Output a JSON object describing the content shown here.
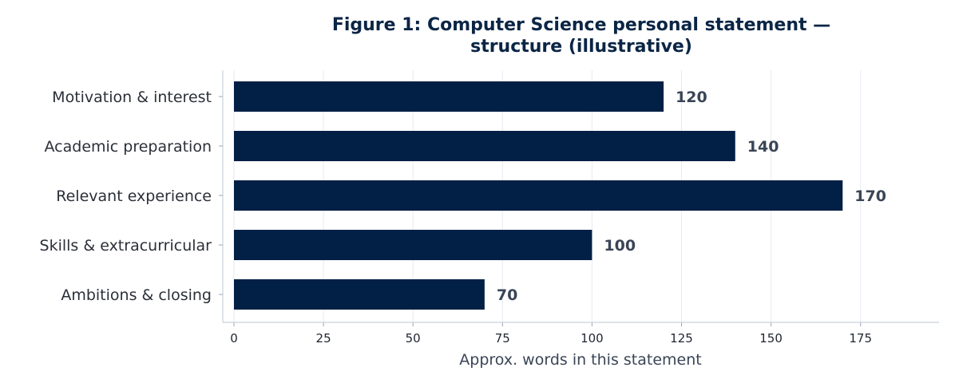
{
  "chart_data": {
    "type": "bar",
    "orientation": "horizontal",
    "title": "Figure 1: Computer Science personal statement — structure (illustrative)",
    "title_lines": [
      "Figure 1: Computer Science personal statement —",
      "structure (illustrative)"
    ],
    "categories": [
      "Motivation & interest",
      "Academic preparation",
      "Relevant experience",
      "Skills & extracurricular",
      "Ambitions & closing"
    ],
    "values": [
      120,
      140,
      170,
      100,
      70
    ],
    "xlabel": "Approx. words in this statement",
    "ylabel": "",
    "xlim": [
      0,
      197
    ],
    "xticks": [
      0,
      25,
      50,
      75,
      100,
      125,
      150,
      175
    ],
    "grid": "vertical",
    "bar_color": "#021f45",
    "title_color": "#0b2545",
    "value_label_color": "#3a4556"
  }
}
